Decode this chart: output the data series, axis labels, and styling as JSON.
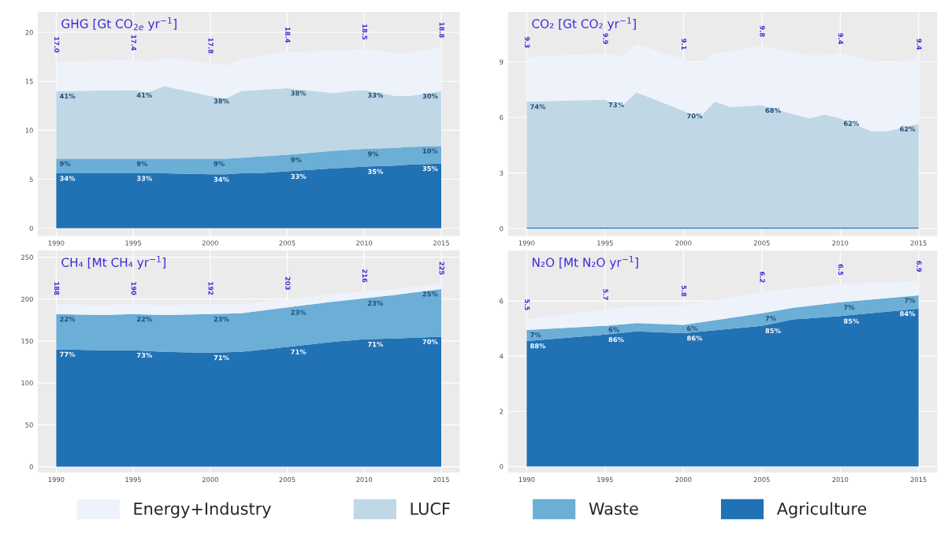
{
  "chart_data": [
    {
      "type": "area",
      "stacked": true,
      "title": "GHG [Gt CO$_{2e}$ yr$^{−1}$]",
      "legend": "bottom",
      "grid": true,
      "x": [
        1990,
        1995,
        1996,
        1997,
        2000,
        2001,
        2002,
        2003,
        2005,
        2008,
        2009,
        2010,
        2012,
        2013,
        2015
      ],
      "xlim": [
        1988.8,
        2016.2
      ],
      "xticks": [
        1990,
        1995,
        2000,
        2005,
        2010,
        2015
      ],
      "ylim": [
        -0.8,
        22.1
      ],
      "yticks": [
        0,
        5,
        10,
        15,
        20
      ],
      "series": [
        {
          "name": "Agriculture",
          "color": "#2171b5",
          "values": [
            5.6,
            5.6,
            5.6,
            5.6,
            5.5,
            5.5,
            5.6,
            5.6,
            5.8,
            6.1,
            6.2,
            6.3,
            6.4,
            6.5,
            6.6
          ]
        },
        {
          "name": "Waste",
          "color": "#6baed6",
          "values": [
            1.5,
            1.5,
            1.5,
            1.5,
            1.6,
            1.6,
            1.6,
            1.7,
            1.7,
            1.8,
            1.8,
            1.8,
            1.8,
            1.8,
            1.8
          ]
        },
        {
          "name": "LUCF",
          "color": "#c0d7e6",
          "values": [
            6.9,
            7.0,
            6.8,
            7.4,
            6.4,
            6.1,
            6.8,
            6.8,
            6.8,
            5.9,
            6.0,
            6.0,
            5.3,
            5.2,
            5.6
          ]
        },
        {
          "name": "Energy+Industry",
          "color": "#eef2fb",
          "values": [
            3.0,
            3.1,
            3.1,
            2.9,
            3.4,
            3.4,
            3.2,
            3.4,
            3.7,
            4.3,
            4.2,
            4.2,
            4.4,
            4.4,
            4.5
          ]
        }
      ],
      "annotations": [
        "17.0",
        "17.4",
        "17.8",
        "18.4",
        "18.5",
        "18.8",
        "34%",
        "33%",
        "34%",
        "33%",
        "35%",
        "35%",
        "9%",
        "9%",
        "9%",
        "9%",
        "9%",
        "10%",
        "41%",
        "41%",
        "38%",
        "38%",
        "33%",
        "30%"
      ]
    },
    {
      "type": "area",
      "stacked": true,
      "title": "CO₂ [Gt CO₂ yr$^{−1}$]",
      "grid": true,
      "x": [
        1990,
        1995,
        1996,
        1997,
        2000,
        2001,
        2002,
        2003,
        2005,
        2008,
        2009,
        2010,
        2012,
        2013,
        2015
      ],
      "xlim": [
        1988.8,
        2016.2
      ],
      "xticks": [
        1990,
        1995,
        2000,
        2005,
        2010,
        2015
      ],
      "ylim": [
        -0.4,
        11.7
      ],
      "yticks": [
        0,
        3,
        6,
        9
      ],
      "series": [
        {
          "color": "#2171b5",
          "values": [
            0.05,
            0.05,
            0.05,
            0.05,
            0.05,
            0.05,
            0.05,
            0.05,
            0.05,
            0.05,
            0.05,
            0.05,
            0.05,
            0.05,
            0.05
          ]
        },
        {
          "color": "#c0d7e6",
          "values": [
            6.8,
            6.9,
            6.5,
            7.3,
            6.3,
            5.9,
            6.8,
            6.5,
            6.6,
            5.9,
            6.1,
            5.9,
            5.2,
            5.2,
            5.6
          ]
        },
        {
          "color": "#eef2fb",
          "values": [
            2.4,
            2.5,
            2.7,
            2.6,
            2.8,
            2.9,
            2.6,
            3.0,
            3.2,
            3.4,
            3.2,
            3.5,
            3.8,
            3.7,
            3.5
          ]
        }
      ],
      "annotations": [
        "9.3",
        "9.9",
        "9.1",
        "9.8",
        "9.4",
        "9.4",
        "74%",
        "73%",
        "70%",
        "68%",
        "62%",
        "62%"
      ]
    },
    {
      "type": "area",
      "stacked": true,
      "title": "CH₄ [Mt CH₄ yr$^{−1}$]",
      "grid": true,
      "x": [
        1990,
        1993,
        1995,
        1997,
        2000,
        2002,
        2005,
        2008,
        2010,
        2012,
        2015
      ],
      "xlim": [
        1988.8,
        2016.2
      ],
      "xticks": [
        1990,
        1995,
        2000,
        2005,
        2010,
        2015
      ],
      "ylim": [
        -7,
        258
      ],
      "yticks": [
        0,
        50,
        100,
        150,
        200,
        250
      ],
      "series": [
        {
          "color": "#2171b5",
          "values": [
            140,
            139,
            139,
            137,
            136,
            137,
            143,
            149,
            152,
            153,
            155
          ]
        },
        {
          "color": "#6baed6",
          "values": [
            42,
            42,
            43,
            44,
            46,
            46,
            47,
            48,
            49,
            52,
            57
          ]
        },
        {
          "color": "#eef2fb",
          "values": [
            12,
            12,
            12,
            12,
            12,
            11,
            10,
            9,
            8,
            7,
            6
          ]
        }
      ],
      "annotations": [
        "188",
        "190",
        "192",
        "203",
        "216",
        "225",
        "77%",
        "73%",
        "71%",
        "71%",
        "71%",
        "70%",
        "22%",
        "22%",
        "23%",
        "23%",
        "23%",
        "25%"
      ]
    },
    {
      "type": "area",
      "stacked": true,
      "title": "N₂O [Mt N₂O yr$^{−1}$]",
      "grid": true,
      "x": [
        1990,
        1995,
        1997,
        2000,
        2005,
        2007,
        2010,
        2015
      ],
      "xlim": [
        1988.8,
        2016.2
      ],
      "xticks": [
        1990,
        1995,
        2000,
        2005,
        2010,
        2015
      ],
      "ylim": [
        -0.22,
        7.83
      ],
      "yticks": [
        0,
        2,
        4,
        6
      ],
      "series": [
        {
          "color": "#2171b5",
          "values": [
            4.55,
            4.78,
            4.9,
            4.83,
            5.1,
            5.33,
            5.45,
            5.72
          ]
        },
        {
          "color": "#6baed6",
          "values": [
            0.4,
            0.32,
            0.3,
            0.3,
            0.45,
            0.42,
            0.5,
            0.48
          ]
        },
        {
          "color": "#eef2fb",
          "values": [
            0.38,
            0.6,
            0.6,
            0.7,
            0.78,
            0.7,
            0.65,
            0.52
          ]
        }
      ],
      "annotations": [
        "5.5",
        "5.7",
        "5.8",
        "6.2",
        "6.5",
        "6.9",
        "88%",
        "86%",
        "86%",
        "85%",
        "85%",
        "84%",
        "7%",
        "6%",
        "6%",
        "7%",
        "7%",
        "7%"
      ]
    }
  ]
}
